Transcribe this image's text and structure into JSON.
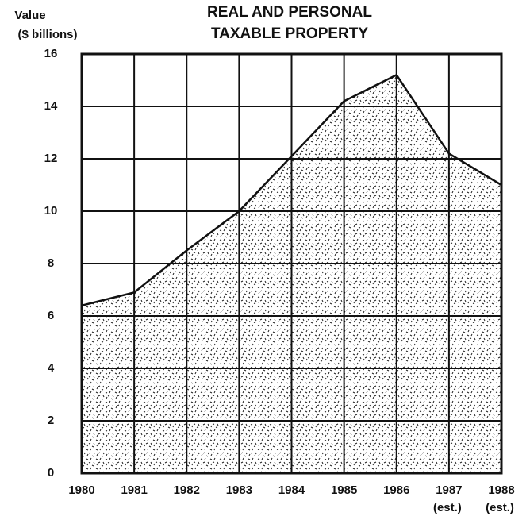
{
  "chart_data": {
    "type": "area",
    "title": [
      "REAL AND PERSONAL",
      "TAXABLE PROPERTY"
    ],
    "ylabel": [
      "Value",
      "($ billions)"
    ],
    "categories": [
      "1980",
      "1981",
      "1982",
      "1983",
      "1984",
      "1985",
      "1986",
      "1987",
      "1988"
    ],
    "category_sublabels": [
      null,
      null,
      null,
      null,
      null,
      null,
      null,
      "(est.)",
      "(est.)"
    ],
    "values": [
      6.4,
      6.9,
      8.5,
      10.0,
      12.1,
      14.2,
      15.2,
      12.2,
      11.0
    ],
    "ylim": [
      0,
      16
    ],
    "yticks": [
      0,
      2,
      4,
      6,
      8,
      10,
      12,
      14,
      16
    ],
    "grid": true,
    "color": "#111111"
  }
}
